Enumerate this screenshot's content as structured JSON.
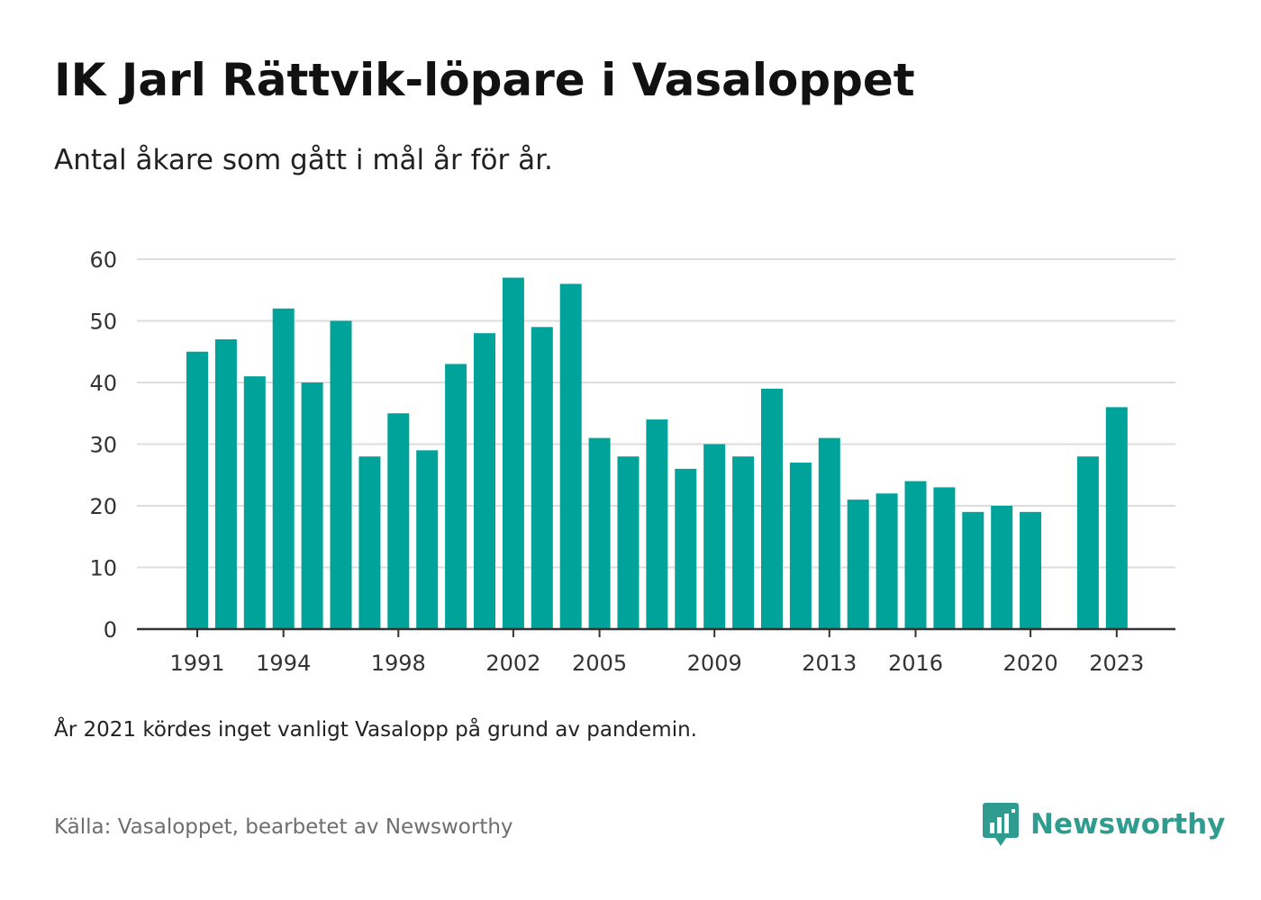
{
  "header": {
    "title": "IK Jarl Rättvik-löpare i Vasaloppet",
    "subtitle": "Antal åkare som gått i mål år för år."
  },
  "footer": {
    "note": "År 2021 kördes inget vanligt Vasalopp på grund av pandemin.",
    "source": "Källa: Vasaloppet, bearbetet av Newsworthy",
    "brand": "Newsworthy",
    "brand_icon": "newsworthy-logo-icon"
  },
  "colors": {
    "bar": "#00a39a",
    "grid": "#dddddd",
    "axis": "#333333",
    "brand": "#2f9c8f"
  },
  "chart_data": {
    "type": "bar",
    "categories": [
      1991,
      1992,
      1993,
      1994,
      1995,
      1996,
      1997,
      1998,
      1999,
      2000,
      2001,
      2002,
      2003,
      2004,
      2005,
      2006,
      2007,
      2008,
      2009,
      2010,
      2011,
      2012,
      2013,
      2014,
      2015,
      2016,
      2017,
      2018,
      2019,
      2020,
      2021,
      2022,
      2023
    ],
    "values": [
      45,
      47,
      41,
      52,
      40,
      50,
      28,
      35,
      29,
      43,
      48,
      57,
      49,
      56,
      31,
      28,
      34,
      26,
      30,
      28,
      39,
      27,
      31,
      21,
      22,
      24,
      23,
      19,
      20,
      19,
      null,
      28,
      36
    ],
    "x_tick_labels": [
      "1991",
      "1994",
      "1998",
      "2002",
      "2005",
      "2009",
      "2013",
      "2016",
      "2020",
      "2023"
    ],
    "y_ticks": [
      0,
      10,
      20,
      30,
      40,
      50,
      60
    ],
    "ylim": [
      0,
      60
    ],
    "grid": true
  }
}
